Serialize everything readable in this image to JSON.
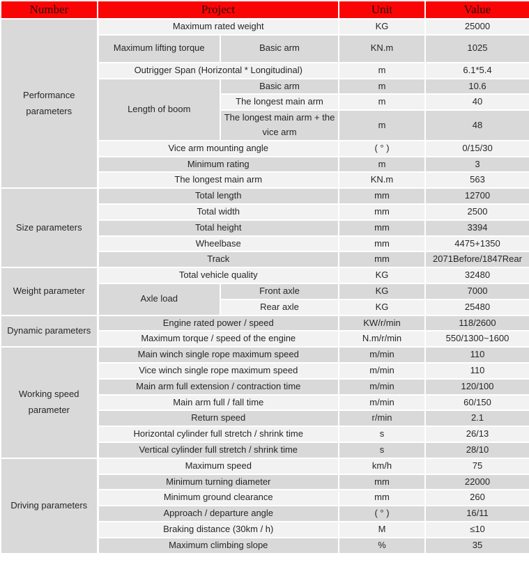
{
  "colors": {
    "header_bg": "#fa0505",
    "header_text": "#2b0b0b",
    "row_gray": "#d9d9d9",
    "row_light": "#f2f2f2",
    "border": "#ffffff",
    "body_text": "#262626"
  },
  "table": {
    "columns": [
      "Number",
      "Project",
      "Unit",
      "Value"
    ],
    "sections": [
      {
        "label": "Performance parameters",
        "rows": [
          {
            "full": "Maximum rated weight",
            "unit": "KG",
            "value": "25000",
            "shade": "light"
          },
          {
            "left": "Maximum lifting torque",
            "leftSpan": 1,
            "right": "Basic arm",
            "unit": "KN.m",
            "value": "1025",
            "shade": "gray",
            "tall": true
          },
          {
            "full": "Outrigger Span (Horizontal * Longitudinal)",
            "unit": "m",
            "value": "6.1*5.4",
            "shade": "light"
          },
          {
            "left": "Length of boom",
            "leftSpan": 3,
            "right": "Basic arm",
            "unit": "m",
            "value": "10.6",
            "shade": "gray"
          },
          {
            "right": "The longest main arm",
            "unit": "m",
            "value": "40",
            "shade": "light"
          },
          {
            "right": "The longest main arm + the vice arm",
            "unit": "m",
            "value": "48",
            "shade": "gray",
            "tall": true
          },
          {
            "full": "Vice arm mounting angle",
            "unit": "( ° )",
            "value": "0/15/30",
            "shade": "light"
          },
          {
            "full": "Minimum rating",
            "unit": "m",
            "value": "3",
            "shade": "gray"
          },
          {
            "full": "The longest main arm",
            "unit": "KN.m",
            "value": "563",
            "shade": "light"
          }
        ]
      },
      {
        "label": "Size parameters",
        "rows": [
          {
            "full": "Total length",
            "unit": "mm",
            "value": "12700",
            "shade": "gray"
          },
          {
            "full": "Total width",
            "unit": "mm",
            "value": "2500",
            "shade": "light"
          },
          {
            "full": "Total height",
            "unit": "mm",
            "value": "3394",
            "shade": "gray"
          },
          {
            "full": "Wheelbase",
            "unit": "mm",
            "value": "4475+1350",
            "shade": "light"
          },
          {
            "full": "Track",
            "unit": "mm",
            "value": "2071Before/1847Rear",
            "shade": "gray"
          }
        ]
      },
      {
        "label": "Weight parameter",
        "rows": [
          {
            "full": "Total vehicle quality",
            "unit": "KG",
            "value": "32480",
            "shade": "light"
          },
          {
            "left": "Axle load",
            "leftSpan": 2,
            "right": "Front axle",
            "unit": "KG",
            "value": "7000",
            "shade": "gray"
          },
          {
            "right": "Rear axle",
            "unit": "KG",
            "value": "25480",
            "shade": "light"
          }
        ]
      },
      {
        "label": "Dynamic parameters",
        "rows": [
          {
            "full": "Engine rated power / speed",
            "unit": "KW/r/min",
            "value": "118/2600",
            "shade": "gray"
          },
          {
            "full": "Maximum torque / speed of the engine",
            "unit": "N.m/r/min",
            "value": "550/1300~1600",
            "shade": "light"
          }
        ]
      },
      {
        "label": "Working speed parameter",
        "rows": [
          {
            "full": "Main winch single rope maximum speed",
            "unit": "m/min",
            "value": "110",
            "shade": "gray"
          },
          {
            "full": "Vice winch single rope maximum speed",
            "unit": "m/min",
            "value": "110",
            "shade": "light"
          },
          {
            "full": "Main arm full extension / contraction time",
            "unit": "m/min",
            "value": "120/100",
            "shade": "gray"
          },
          {
            "full": "Main arm full / fall time",
            "unit": "m/min",
            "value": "60/150",
            "shade": "light"
          },
          {
            "full": "Return speed",
            "unit": "r/min",
            "value": "2.1",
            "shade": "gray"
          },
          {
            "full": "Horizontal cylinder full stretch / shrink time",
            "unit": "s",
            "value": "26/13",
            "shade": "light"
          },
          {
            "full": "Vertical cylinder full stretch / shrink time",
            "unit": "s",
            "value": "28/10",
            "shade": "gray"
          }
        ]
      },
      {
        "label": "Driving parameters",
        "rows": [
          {
            "full": "Maximum speed",
            "unit": "km/h",
            "value": "75",
            "shade": "light"
          },
          {
            "full": "Minimum turning diameter",
            "unit": "mm",
            "value": "22000",
            "shade": "gray"
          },
          {
            "full": "Minimum ground clearance",
            "unit": "mm",
            "value": "260",
            "shade": "light"
          },
          {
            "full": "Approach / departure angle",
            "unit": "( ° )",
            "value": "16/11",
            "shade": "gray"
          },
          {
            "full": "Braking distance (30km / h)",
            "unit": "M",
            "value": "≤10",
            "shade": "light"
          },
          {
            "full": "Maximum climbing slope",
            "unit": "%",
            "value": "35",
            "shade": "gray"
          }
        ]
      }
    ]
  }
}
